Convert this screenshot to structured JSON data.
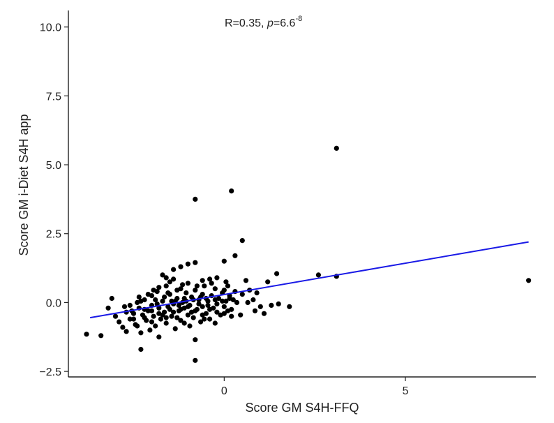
{
  "chart_data": {
    "type": "scatter",
    "title": "",
    "xlabel": "Score GM S4H-FFQ",
    "ylabel": "Score GM i-Diet S4H app",
    "xlim": [
      -4.3,
      8.6
    ],
    "ylim": [
      -2.7,
      10.6
    ],
    "xticks": [
      0,
      5
    ],
    "xtick_labels": [
      "0",
      "5"
    ],
    "yticks": [
      -2.5,
      0.0,
      2.5,
      5.0,
      7.5,
      10.0
    ],
    "ytick_labels": [
      "−2.5",
      "0.0",
      "2.5",
      "5.0",
      "7.5",
      "10.0"
    ],
    "annotation": {
      "prefix": "R=0.35, ",
      "p_symbol": "p",
      "p_equals": "=6.6",
      "p_exponent": "-8"
    },
    "grid": false,
    "point_color": "#000000",
    "line_color": "#1a1ae6",
    "regression_line": {
      "x": [
        -3.7,
        8.4
      ],
      "y": [
        -0.55,
        2.2
      ]
    },
    "series": [
      {
        "points": [
          [
            -3.8,
            -1.15
          ],
          [
            -3.4,
            -1.2
          ],
          [
            -3.2,
            -0.2
          ],
          [
            -3.1,
            0.15
          ],
          [
            -3.0,
            -0.5
          ],
          [
            -2.9,
            -0.7
          ],
          [
            -2.8,
            -0.9
          ],
          [
            -2.7,
            -1.05
          ],
          [
            -2.7,
            -0.35
          ],
          [
            -2.6,
            -0.1
          ],
          [
            -2.55,
            -0.3
          ],
          [
            -2.5,
            -0.6
          ],
          [
            -2.45,
            -0.8
          ],
          [
            -2.4,
            0.0
          ],
          [
            -2.35,
            -0.2
          ],
          [
            -2.3,
            -1.1
          ],
          [
            -2.25,
            -0.45
          ],
          [
            -2.2,
            0.1
          ],
          [
            -2.15,
            -0.65
          ],
          [
            -2.1,
            -0.3
          ],
          [
            -2.05,
            -1.0
          ],
          [
            -2.0,
            0.25
          ],
          [
            -2.0,
            -0.1
          ],
          [
            -1.95,
            -0.5
          ],
          [
            -1.9,
            -0.85
          ],
          [
            -1.85,
            0.4
          ],
          [
            -1.8,
            -0.2
          ],
          [
            -1.8,
            -1.25
          ],
          [
            -1.75,
            -0.6
          ],
          [
            -1.7,
            0.05
          ],
          [
            -1.65,
            -0.35
          ],
          [
            -1.6,
            0.6
          ],
          [
            -1.6,
            -0.75
          ],
          [
            -1.55,
            -0.15
          ],
          [
            -1.5,
            0.3
          ],
          [
            -1.45,
            -0.5
          ],
          [
            -1.4,
            0.85
          ],
          [
            -1.4,
            -0.05
          ],
          [
            -1.35,
            -0.95
          ],
          [
            -1.3,
            0.15
          ],
          [
            -1.25,
            -0.3
          ],
          [
            -1.2,
            0.5
          ],
          [
            -1.2,
            -0.65
          ],
          [
            -1.15,
            0.0
          ],
          [
            -1.1,
            -0.2
          ],
          [
            -1.05,
            0.35
          ],
          [
            -1.0,
            -0.45
          ],
          [
            -1.0,
            0.7
          ],
          [
            -0.95,
            -0.1
          ],
          [
            -0.9,
            0.2
          ],
          [
            -0.85,
            -0.55
          ],
          [
            -0.8,
            0.45
          ],
          [
            -0.8,
            -1.35
          ],
          [
            -0.75,
            -0.25
          ],
          [
            -0.7,
            0.1
          ],
          [
            -0.65,
            -0.7
          ],
          [
            -0.6,
            0.3
          ],
          [
            -0.6,
            -0.15
          ],
          [
            -0.55,
            0.6
          ],
          [
            -0.5,
            -0.4
          ],
          [
            -0.45,
            0.05
          ],
          [
            -0.4,
            -0.6
          ],
          [
            -0.35,
            0.25
          ],
          [
            -0.3,
            -0.2
          ],
          [
            -0.25,
            0.5
          ],
          [
            -0.2,
            -0.05
          ],
          [
            -0.15,
            0.15
          ],
          [
            -0.1,
            -0.45
          ],
          [
            -0.05,
            0.35
          ],
          [
            0.0,
            -0.15
          ],
          [
            0.0,
            0.45
          ],
          [
            0.05,
            0.05
          ],
          [
            0.1,
            -0.3
          ],
          [
            0.15,
            0.25
          ],
          [
            0.2,
            -0.5
          ],
          [
            0.25,
            0.1
          ],
          [
            -2.3,
            0.05
          ],
          [
            -2.1,
            0.3
          ],
          [
            -1.9,
            0.1
          ],
          [
            -1.7,
            -0.45
          ],
          [
            -1.5,
            -0.25
          ],
          [
            -1.3,
            -0.55
          ],
          [
            -1.1,
            0.15
          ],
          [
            -0.9,
            -0.35
          ],
          [
            -0.7,
            -0.05
          ],
          [
            -0.5,
            0.15
          ],
          [
            -2.5,
            -0.4
          ],
          [
            -2.2,
            -0.25
          ],
          [
            -1.8,
            0.55
          ],
          [
            -1.6,
            0.9
          ],
          [
            -1.4,
            1.2
          ],
          [
            -1.2,
            1.3
          ],
          [
            -1.0,
            1.4
          ],
          [
            -0.8,
            1.45
          ],
          [
            -0.6,
            0.8
          ],
          [
            -2.3,
            -1.7
          ],
          [
            -0.8,
            -2.1
          ],
          [
            -0.8,
            3.75
          ],
          [
            0.2,
            4.05
          ],
          [
            0.5,
            2.25
          ],
          [
            0.3,
            1.7
          ],
          [
            0.0,
            1.5
          ],
          [
            -1.7,
            1.0
          ],
          [
            -1.5,
            0.75
          ],
          [
            -1.3,
            0.45
          ],
          [
            -1.1,
            -0.75
          ],
          [
            -0.95,
            -0.85
          ],
          [
            -0.4,
            0.85
          ],
          [
            -0.2,
            0.9
          ],
          [
            0.1,
            0.6
          ],
          [
            0.3,
            0.4
          ],
          [
            0.5,
            0.3
          ],
          [
            0.6,
            0.8
          ],
          [
            0.7,
            0.45
          ],
          [
            0.8,
            0.1
          ],
          [
            0.9,
            0.35
          ],
          [
            1.0,
            -0.15
          ],
          [
            1.1,
            -0.4
          ],
          [
            1.2,
            0.75
          ],
          [
            1.3,
            -0.1
          ],
          [
            1.45,
            1.05
          ],
          [
            1.5,
            -0.05
          ],
          [
            1.8,
            -0.15
          ],
          [
            2.6,
            1.0
          ],
          [
            3.1,
            0.95
          ],
          [
            3.1,
            5.6
          ],
          [
            8.4,
            0.8
          ],
          [
            -2.0,
            -0.3
          ],
          [
            -1.85,
            -0.05
          ],
          [
            -1.65,
            0.2
          ],
          [
            -1.45,
            0.05
          ],
          [
            -1.25,
            -0.1
          ],
          [
            -1.05,
            0.05
          ],
          [
            -0.85,
            0.1
          ],
          [
            -0.65,
            0.2
          ],
          [
            -0.45,
            -0.1
          ],
          [
            -0.25,
            0.1
          ],
          [
            -0.05,
            0.05
          ],
          [
            0.15,
            0.15
          ],
          [
            0.35,
            0.0
          ],
          [
            -2.6,
            -0.6
          ],
          [
            -2.4,
            -0.85
          ],
          [
            -2.2,
            -0.55
          ],
          [
            -2.0,
            -0.7
          ],
          [
            -1.8,
            -0.4
          ],
          [
            -1.6,
            -0.55
          ],
          [
            -1.4,
            -0.35
          ],
          [
            -1.2,
            -0.25
          ],
          [
            -1.0,
            -0.15
          ],
          [
            -0.8,
            -0.3
          ],
          [
            -0.6,
            -0.45
          ],
          [
            -0.4,
            -0.25
          ],
          [
            -0.2,
            -0.35
          ],
          [
            0.0,
            -0.4
          ],
          [
            0.2,
            -0.25
          ],
          [
            -2.75,
            -0.15
          ],
          [
            -2.35,
            0.2
          ],
          [
            -1.95,
            0.45
          ],
          [
            -1.55,
            0.35
          ],
          [
            -1.15,
            0.65
          ],
          [
            -0.75,
            0.6
          ],
          [
            -0.35,
            0.7
          ],
          [
            0.05,
            0.75
          ],
          [
            -1.35,
            0.05
          ],
          [
            -0.55,
            -0.6
          ],
          [
            -0.25,
            -0.75
          ],
          [
            0.45,
            -0.45
          ],
          [
            0.65,
            0.0
          ],
          [
            0.85,
            -0.3
          ]
        ]
      }
    ]
  }
}
